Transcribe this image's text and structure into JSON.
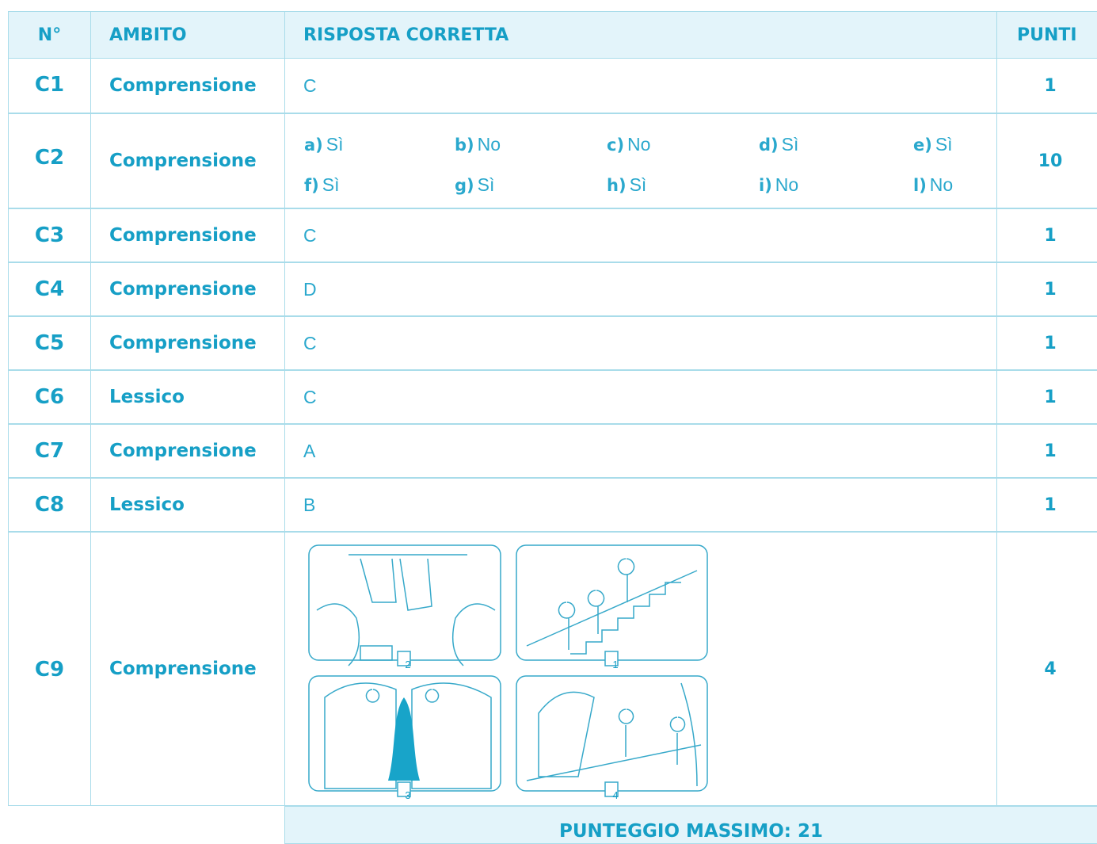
{
  "table": {
    "header": [
      "N°",
      "AMBITO",
      "RISPOSTA CORRETTA",
      "PUNTI"
    ],
    "rows": [
      {
        "num": "C1",
        "ambito": "Comprensione",
        "risposta": "C",
        "punti": 1
      },
      {
        "num": "C2",
        "ambito": "Comprensione",
        "risposta": [
          {
            "letter": "a)",
            "answer": "Sì"
          },
          {
            "letter": "b)",
            "answer": "No"
          },
          {
            "letter": "c)",
            "answer": "No"
          },
          {
            "letter": "d)",
            "answer": "Sì"
          },
          {
            "letter": "e)",
            "answer": "Sì"
          },
          {
            "letter": "f)",
            "answer": "Sì"
          },
          {
            "letter": "g)",
            "answer": "Sì"
          },
          {
            "letter": "h)",
            "answer": "Sì"
          },
          {
            "letter": "i)",
            "answer": "No"
          },
          {
            "letter": "l)",
            "answer": "No"
          }
        ],
        "punti": 10
      },
      {
        "num": "C3",
        "ambito": "Comprensione",
        "risposta": "C",
        "punti": 1
      },
      {
        "num": "C4",
        "ambito": "Comprensione",
        "risposta": "D",
        "punti": 1
      },
      {
        "num": "C5",
        "ambito": "Comprensione",
        "risposta": "C",
        "punti": 1
      },
      {
        "num": "C6",
        "ambito": "Lessico",
        "risposta": "C",
        "punti": 1
      },
      {
        "num": "C7",
        "ambito": "Comprensione",
        "risposta": "A",
        "punti": 1
      },
      {
        "num": "C8",
        "ambito": "Lessico",
        "risposta": "B",
        "punti": 1
      },
      {
        "num": "C9",
        "ambito": "Comprensione",
        "risposta": [
          "2",
          "1",
          "3",
          "4"
        ],
        "punti": 4
      }
    ],
    "footer": {
      "label": "PUNTEGGIO MASSIMO:",
      "value": 21
    }
  }
}
